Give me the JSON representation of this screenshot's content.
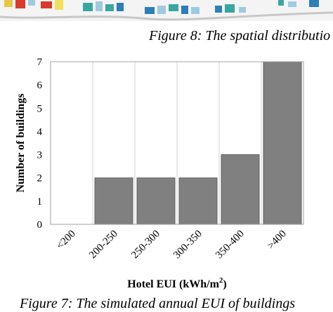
{
  "captions": {
    "top": "Figure 8: The spatial distributio",
    "bottom": "Figure 7: The simulated annual EUI of buildings"
  },
  "colors": {
    "bar_fill": "#808080",
    "bar_stroke": "#606060",
    "grid": "#d0d0d0",
    "plot_border": "#a0a0a0"
  },
  "chart_data": {
    "type": "bar",
    "categories": [
      "<200",
      "200-250",
      "250-300",
      "300-350",
      "350-400",
      ">400"
    ],
    "values": [
      0,
      2,
      2,
      2,
      3,
      7
    ],
    "ylabel": "Number of buildings",
    "xlabel_main": "Hotel EUI (kWh/m",
    "xlabel_sup": "2",
    "xlabel_tail": ")",
    "ylim": [
      0,
      7
    ],
    "yticks": [
      "0",
      "1",
      "2",
      "3",
      "4",
      "5",
      "6",
      "7"
    ],
    "grid": true
  }
}
